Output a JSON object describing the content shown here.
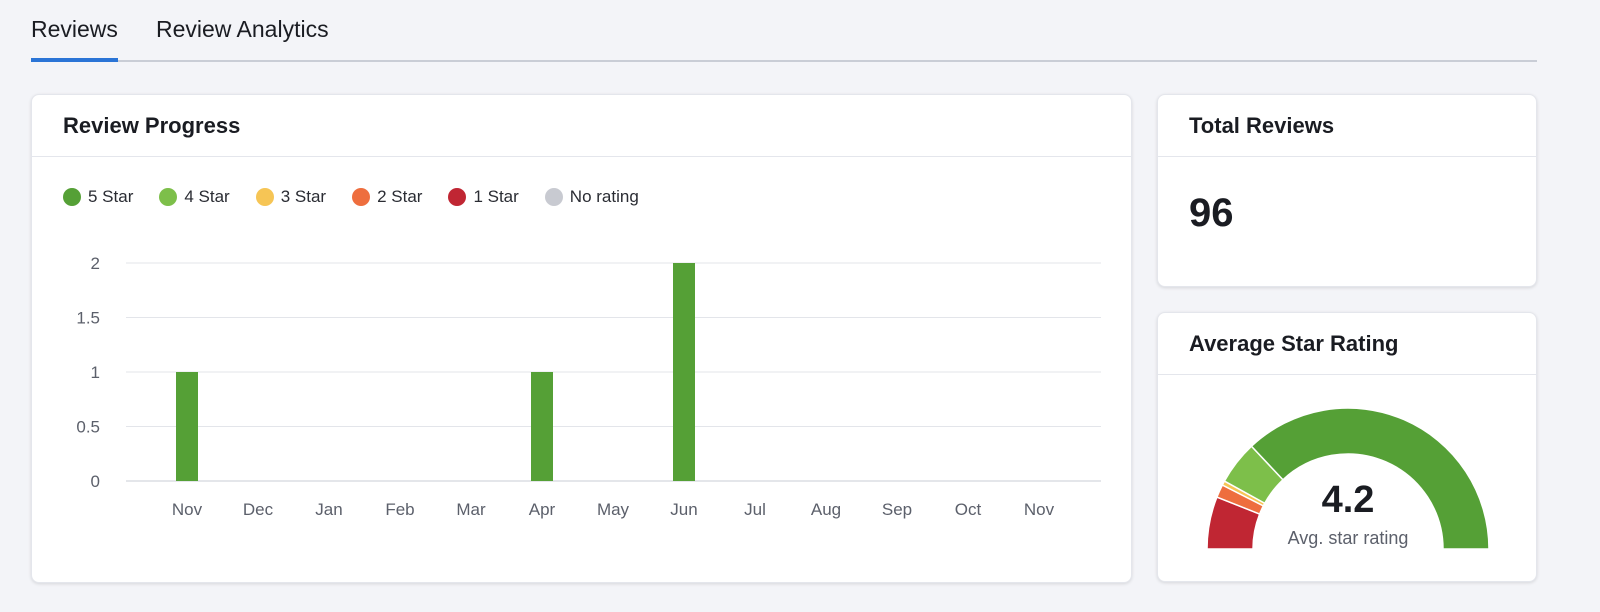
{
  "tabs": [
    {
      "label": "Reviews",
      "active": true
    },
    {
      "label": "Review Analytics",
      "active": false
    }
  ],
  "progress": {
    "title": "Review Progress"
  },
  "total": {
    "title": "Total Reviews",
    "value": "96"
  },
  "average": {
    "title": "Average Star Rating",
    "value": "4.2",
    "caption": "Avg. star rating",
    "gauge_fractions": [
      {
        "name": "1 Star",
        "fraction": 0.12,
        "color": "#c02633"
      },
      {
        "name": "2 Star",
        "fraction": 0.03,
        "color": "#ee6e3e"
      },
      {
        "name": "3 Star",
        "fraction": 0.01,
        "color": "#f6c555"
      },
      {
        "name": "4 Star",
        "fraction": 0.1,
        "color": "#7dbf4a"
      },
      {
        "name": "5 Star",
        "fraction": 0.74,
        "color": "#55a036"
      }
    ]
  },
  "chart_data": {
    "type": "bar",
    "categories": [
      "Nov",
      "Dec",
      "Jan",
      "Feb",
      "Mar",
      "Apr",
      "May",
      "Jun",
      "Jul",
      "Aug",
      "Sep",
      "Oct",
      "Nov"
    ],
    "series": [
      {
        "name": "5 Star",
        "color": "#55a036",
        "values": [
          1,
          0,
          0,
          0,
          0,
          1,
          0,
          2,
          0,
          0,
          0,
          0,
          0
        ]
      },
      {
        "name": "4 Star",
        "color": "#7dbf4a",
        "values": [
          0,
          0,
          0,
          0,
          0,
          0,
          0,
          0,
          0,
          0,
          0,
          0,
          0
        ]
      },
      {
        "name": "3 Star",
        "color": "#f6c555",
        "values": [
          0,
          0,
          0,
          0,
          0,
          0,
          0,
          0,
          0,
          0,
          0,
          0,
          0
        ]
      },
      {
        "name": "2 Star",
        "color": "#ee6e3e",
        "values": [
          0,
          0,
          0,
          0,
          0,
          0,
          0,
          0,
          0,
          0,
          0,
          0,
          0
        ]
      },
      {
        "name": "1 Star",
        "color": "#c02633",
        "values": [
          0,
          0,
          0,
          0,
          0,
          0,
          0,
          0,
          0,
          0,
          0,
          0,
          0
        ]
      },
      {
        "name": "No rating",
        "color": "#c8cad1",
        "values": [
          0,
          0,
          0,
          0,
          0,
          0,
          0,
          0,
          0,
          0,
          0,
          0,
          0
        ]
      }
    ],
    "yticks": [
      "0",
      "0.5",
      "1",
      "1.5",
      "2"
    ],
    "ylim": [
      0,
      2
    ],
    "grid": true,
    "legend": "top-left",
    "stacked": true
  }
}
